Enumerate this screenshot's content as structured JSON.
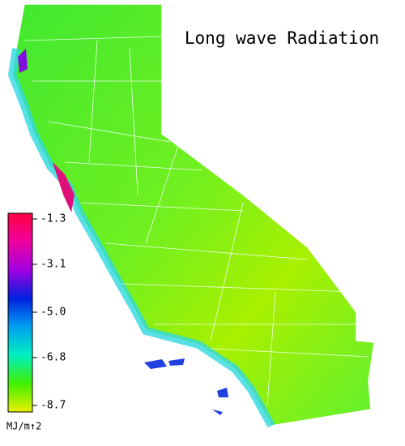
{
  "title": "Long wave Radiation",
  "colorbar": {
    "lim": [
      -8.7,
      -1.3
    ],
    "ticks": [
      -1.3,
      -3.1,
      {
        "value": -5.0,
        "label": "-5.0"
      },
      -6.8,
      -8.7
    ],
    "colors": [
      "#e8f000",
      "#40f000",
      "#00f0c0",
      "#00a0f0",
      "#0020e0",
      "#a000e0",
      "#f000a0",
      "#ff0040"
    ],
    "unit": "MJ/m↑2"
  }
}
